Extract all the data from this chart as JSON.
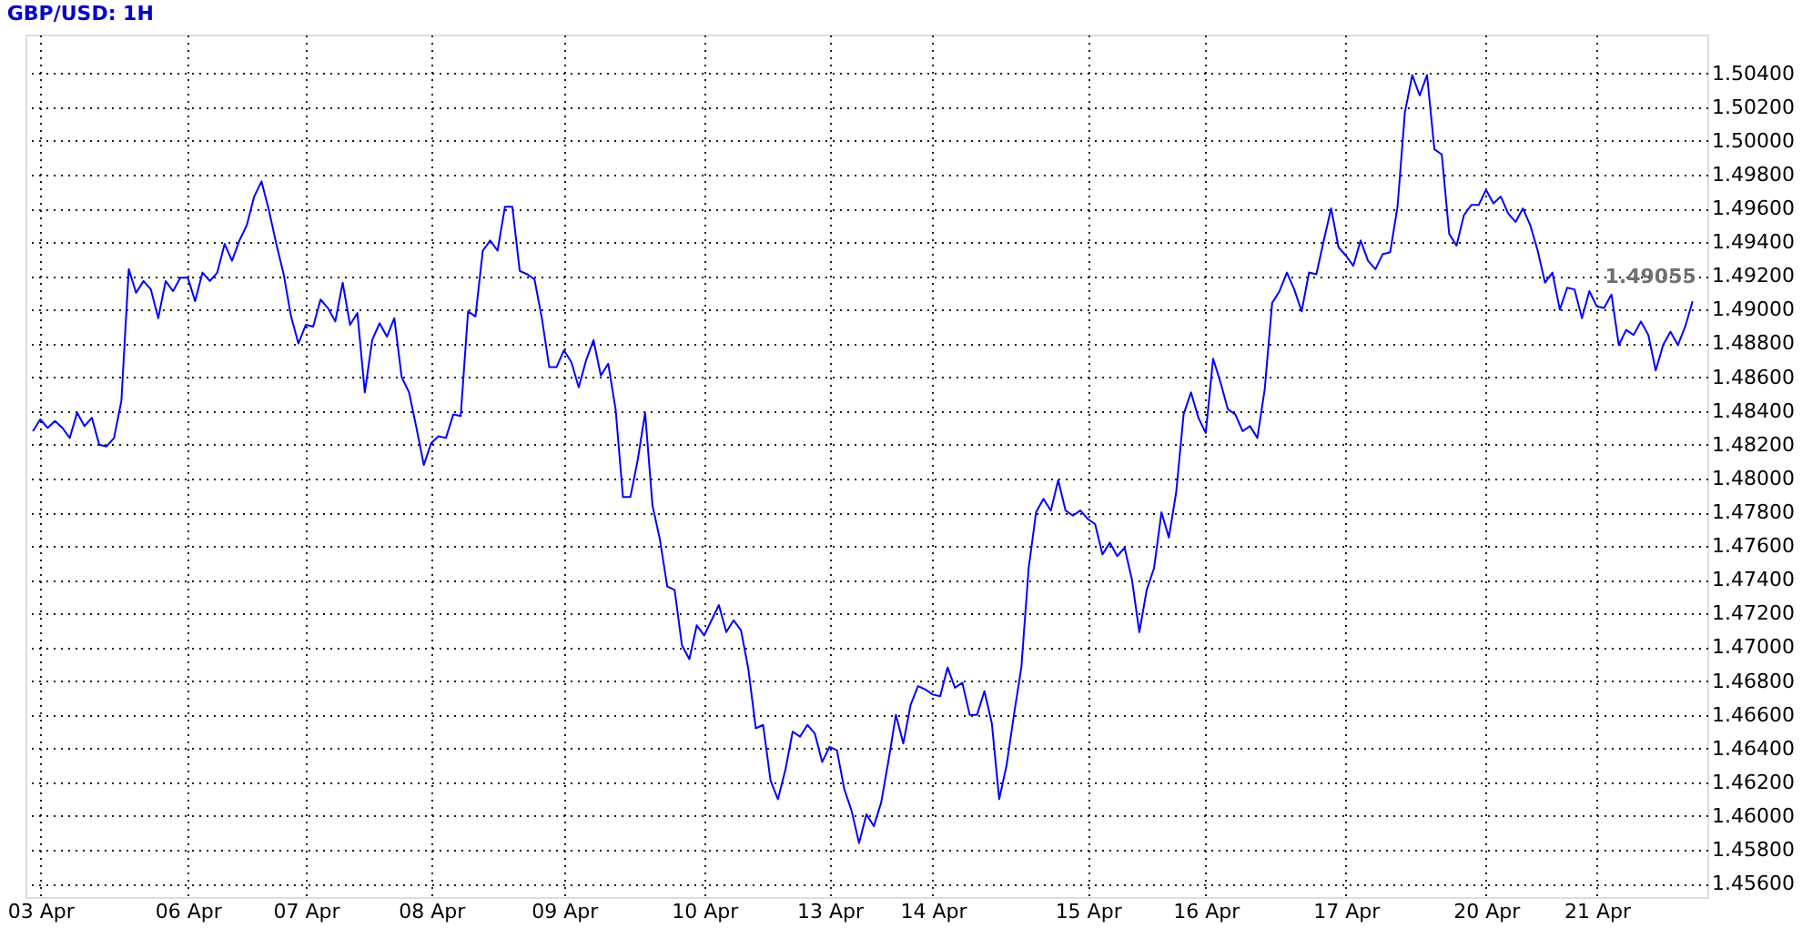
{
  "chart_data": {
    "type": "line",
    "title": "GBP/USD: 1H",
    "categories": [
      null,
      "03 Apr",
      null,
      null,
      null,
      null,
      null,
      null,
      null,
      null,
      null,
      null,
      null,
      null,
      null,
      null,
      null,
      null,
      null,
      null,
      null,
      "06 Apr",
      null,
      null,
      null,
      null,
      null,
      null,
      null,
      null,
      null,
      null,
      null,
      null,
      null,
      null,
      null,
      "07 Apr",
      null,
      null,
      null,
      null,
      null,
      null,
      null,
      null,
      null,
      null,
      null,
      null,
      null,
      null,
      null,
      null,
      "08 Apr",
      null,
      null,
      null,
      null,
      null,
      null,
      null,
      null,
      null,
      null,
      null,
      null,
      null,
      null,
      null,
      null,
      null,
      "09 Apr",
      null,
      null,
      null,
      null,
      null,
      null,
      null,
      null,
      null,
      null,
      null,
      null,
      null,
      null,
      null,
      null,
      null,
      null,
      "10 Apr",
      null,
      null,
      null,
      null,
      null,
      null,
      null,
      null,
      null,
      null,
      null,
      null,
      null,
      null,
      null,
      null,
      "13 Apr",
      null,
      null,
      null,
      null,
      null,
      null,
      null,
      null,
      null,
      null,
      null,
      null,
      null,
      "14 Apr",
      null,
      null,
      null,
      null,
      null,
      null,
      null,
      null,
      null,
      null,
      null,
      null,
      null,
      null,
      null,
      null,
      null,
      null,
      null,
      null,
      "15 Apr",
      null,
      null,
      null,
      null,
      null,
      null,
      null,
      null,
      null,
      null,
      null,
      null,
      null,
      null,
      null,
      "16 Apr",
      null,
      null,
      null,
      null,
      null,
      null,
      null,
      null,
      null,
      null,
      null,
      null,
      null,
      null,
      null,
      null,
      null,
      null,
      "17 Apr",
      null,
      null,
      null,
      null,
      null,
      null,
      null,
      null,
      null,
      null,
      null,
      null,
      null,
      null,
      null,
      null,
      null,
      null,
      "20 Apr",
      null,
      null,
      null,
      null,
      null,
      null,
      null,
      null,
      null,
      null,
      null,
      null,
      null,
      null,
      "21 Apr",
      null,
      null,
      null,
      null,
      null,
      null,
      null,
      null,
      null,
      null,
      null,
      null,
      null
    ],
    "series": [
      {
        "color": "#0000ff",
        "values": [
          1.4828,
          1.4835,
          1.483,
          1.4834,
          1.483,
          1.4824,
          1.4839,
          1.4831,
          1.4836,
          1.482,
          1.4819,
          1.4824,
          1.4846,
          1.4924,
          1.491,
          1.4917,
          1.4912,
          1.4895,
          1.4917,
          1.4911,
          1.4919,
          1.4919,
          1.4905,
          1.4922,
          1.4917,
          1.4922,
          1.4939,
          1.4929,
          1.4941,
          1.495,
          1.4967,
          1.4976,
          1.4959,
          1.4939,
          1.4921,
          1.4896,
          1.488,
          1.4891,
          1.489,
          1.4906,
          1.4901,
          1.4893,
          1.4916,
          1.4891,
          1.4898,
          1.4851,
          1.4882,
          1.4892,
          1.4884,
          1.4895,
          1.486,
          1.4851,
          1.483,
          1.4808,
          1.4821,
          1.4825,
          1.4824,
          1.4838,
          1.4837,
          1.4899,
          1.4896,
          1.4935,
          1.4941,
          1.4935,
          1.4961,
          1.4961,
          1.4923,
          1.4921,
          1.4918,
          1.4895,
          1.4866,
          1.4866,
          1.4876,
          1.4869,
          1.4854,
          1.487,
          1.4882,
          1.4861,
          1.4868,
          1.4841,
          1.4789,
          1.4789,
          1.4811,
          1.4839,
          1.4784,
          1.4764,
          1.4736,
          1.4734,
          1.4701,
          1.4693,
          1.4713,
          1.4707,
          1.4716,
          1.4725,
          1.4709,
          1.4716,
          1.471,
          1.4687,
          1.4652,
          1.4654,
          1.4621,
          1.461,
          1.4627,
          1.465,
          1.4647,
          1.4654,
          1.4649,
          1.4632,
          1.4641,
          1.4639,
          1.4616,
          1.4603,
          1.4584,
          1.4601,
          1.4594,
          1.4608,
          1.4633,
          1.466,
          1.4643,
          1.4666,
          1.4677,
          1.4675,
          1.4672,
          1.4671,
          1.4688,
          1.4676,
          1.4679,
          1.466,
          1.466,
          1.4674,
          1.4655,
          1.461,
          1.463,
          1.466,
          1.4688,
          1.4747,
          1.478,
          1.4788,
          1.4781,
          1.4799,
          1.4781,
          1.4778,
          1.4781,
          1.4776,
          1.4773,
          1.4755,
          1.4762,
          1.4754,
          1.4759,
          1.474,
          1.4709,
          1.4734,
          1.4747,
          1.478,
          1.4765,
          1.4792,
          1.4838,
          1.4851,
          1.4836,
          1.4827,
          1.4871,
          1.4857,
          1.4841,
          1.4838,
          1.4828,
          1.4831,
          1.4824,
          1.4853,
          1.4904,
          1.4911,
          1.4922,
          1.4912,
          1.4899,
          1.4922,
          1.4921,
          1.4941,
          1.496,
          1.4937,
          1.4932,
          1.4926,
          1.4941,
          1.4929,
          1.4924,
          1.4933,
          1.4934,
          1.4961,
          1.5017,
          1.5039,
          1.5027,
          1.5039,
          1.4995,
          1.4992,
          1.4945,
          1.4938,
          1.4956,
          1.4962,
          1.4962,
          1.4971,
          1.4963,
          1.4967,
          1.4957,
          1.4952,
          1.496,
          1.495,
          1.4935,
          1.4916,
          1.4922,
          1.49,
          1.4913,
          1.4912,
          1.4895,
          1.4911,
          1.4902,
          1.4901,
          1.4909,
          1.4879,
          1.4888,
          1.4885,
          1.4893,
          1.4885,
          1.4864,
          1.4879,
          1.4887,
          1.4879,
          1.489,
          1.4905
        ]
      }
    ],
    "ylim": [
      1.4552,
      1.5063
    ],
    "yticks": [
      {
        "value": 1.456,
        "label": "1.45600"
      },
      {
        "value": 1.458,
        "label": "1.45800"
      },
      {
        "value": 1.46,
        "label": "1.46000"
      },
      {
        "value": 1.462,
        "label": "1.46200"
      },
      {
        "value": 1.464,
        "label": "1.46400"
      },
      {
        "value": 1.466,
        "label": "1.46600"
      },
      {
        "value": 1.468,
        "label": "1.46800"
      },
      {
        "value": 1.47,
        "label": "1.47000"
      },
      {
        "value": 1.472,
        "label": "1.47200"
      },
      {
        "value": 1.474,
        "label": "1.47400"
      },
      {
        "value": 1.476,
        "label": "1.47600"
      },
      {
        "value": 1.478,
        "label": "1.47800"
      },
      {
        "value": 1.48,
        "label": "1.48000"
      },
      {
        "value": 1.482,
        "label": "1.48200"
      },
      {
        "value": 1.484,
        "label": "1.48400"
      },
      {
        "value": 1.486,
        "label": "1.48600"
      },
      {
        "value": 1.488,
        "label": "1.48800"
      },
      {
        "value": 1.49,
        "label": "1.49000"
      },
      {
        "value": 1.492,
        "label": "1.49200"
      },
      {
        "value": 1.494,
        "label": "1.49400"
      },
      {
        "value": 1.496,
        "label": "1.49600"
      },
      {
        "value": 1.498,
        "label": "1.49800"
      },
      {
        "value": 1.5,
        "label": "1.50000"
      },
      {
        "value": 1.502,
        "label": "1.50200"
      },
      {
        "value": 1.504,
        "label": "1.50400"
      }
    ],
    "annotations": [
      "1.49055"
    ],
    "grid": true,
    "marker": "none",
    "line_style": "solid"
  }
}
